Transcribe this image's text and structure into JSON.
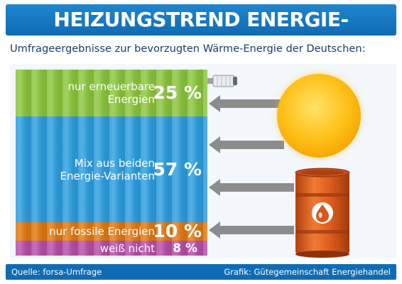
{
  "header": {
    "title": "HEIZUNGSTREND ENERGIE-KOMBINATION",
    "subtitle": "Umfrageergebnisse zur bevorzugten Wärme-Energie der Deutschen:"
  },
  "chart_data": {
    "type": "bar",
    "orientation": "stacked-vertical",
    "categories": [
      "nur erneuerbare Energien",
      "Mix aus beiden Energie-Varianten",
      "nur fossile Energien",
      "weiß nicht"
    ],
    "values": [
      25,
      57,
      10,
      8
    ],
    "value_labels": [
      "25 %",
      "57 %",
      "10 %",
      "8 %"
    ],
    "label_lines": [
      [
        "nur erneuerbare",
        "Energien"
      ],
      [
        "Mix aus beiden",
        "Energie-Varianten"
      ],
      [
        "nur fossile Energien"
      ],
      [
        "weiß nicht"
      ]
    ],
    "unit": "%",
    "colors": [
      "#8cc63e",
      "#2e9fe0",
      "#e27a12",
      "#b94fa6"
    ],
    "title": "HEIZUNGSTREND ENERGIE-KOMBINATION",
    "subtitle": "Umfrageergebnisse zur bevorzugten Wärme-Energie der Deutschen:"
  },
  "illustration": {
    "sun_icon": "sun-icon",
    "barrel_icon": "oil-barrel-icon",
    "valve_icon": "radiator-valve-icon",
    "arrow_color": "#8c8c8c"
  },
  "footer": {
    "source": "Quelle: forsa-Umfrage",
    "credit": "Grafik: Gütegemeinschaft Energiehandel"
  },
  "colors": {
    "title_bar": "#0f6bb3",
    "subtitle_text": "#1a3b6e",
    "sun": "#ffc21a",
    "barrel": "#d9571b"
  }
}
